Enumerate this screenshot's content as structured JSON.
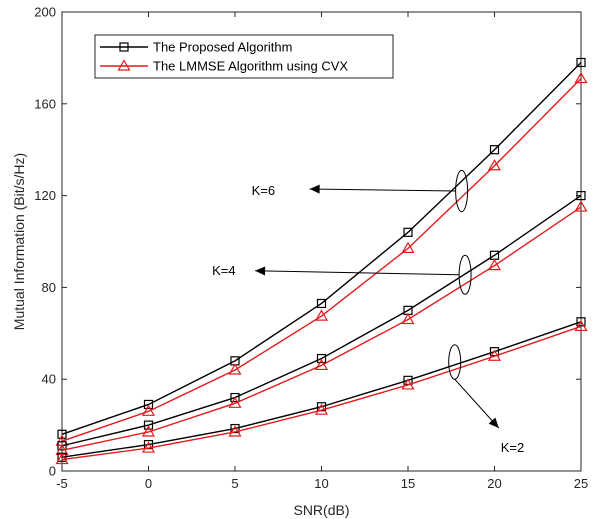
{
  "chart_data": {
    "type": "line",
    "xlabel": "SNR(dB)",
    "ylabel": "Mutual Information (Bit/s/Hz)",
    "xlim": [
      -5,
      25
    ],
    "ylim": [
      0,
      200
    ],
    "x_ticks": [
      -5,
      0,
      5,
      10,
      15,
      20,
      25
    ],
    "y_ticks": [
      0,
      40,
      80,
      120,
      160,
      200
    ],
    "grid": false,
    "legend_position": "top-left",
    "x": [
      -5,
      0,
      5,
      10,
      15,
      20,
      25
    ],
    "series": [
      {
        "name": "The Proposed Algorithm",
        "group": "K=6",
        "marker": "square",
        "color": "#000000",
        "values": [
          16,
          29,
          48,
          73,
          104,
          140,
          178
        ]
      },
      {
        "name": "The LMMSE Algorithm using CVX",
        "group": "K=6",
        "marker": "triangle",
        "color": "#e41a1c",
        "values": [
          13,
          26,
          44,
          67.5,
          97,
          133,
          171
        ]
      },
      {
        "name": "The Proposed Algorithm",
        "group": "K=4",
        "marker": "square",
        "color": "#000000",
        "values": [
          11,
          20,
          32,
          49,
          70,
          94,
          120
        ]
      },
      {
        "name": "The LMMSE Algorithm using CVX",
        "group": "K=4",
        "marker": "triangle",
        "color": "#e41a1c",
        "values": [
          9,
          17,
          29.5,
          46,
          66,
          89.5,
          115
        ]
      },
      {
        "name": "The Proposed Algorithm",
        "group": "K=2",
        "marker": "square",
        "color": "#000000",
        "values": [
          6,
          11.5,
          18.5,
          28,
          39.5,
          52,
          65
        ]
      },
      {
        "name": "The LMMSE Algorithm using CVX",
        "group": "K=2",
        "marker": "triangle",
        "color": "#e41a1c",
        "values": [
          5,
          10,
          17,
          26.5,
          37.5,
          50,
          63
        ]
      }
    ],
    "legend": [
      {
        "label": "The Proposed Algorithm",
        "marker": "square",
        "color": "#000000"
      },
      {
        "label": "The LMMSE Algorithm using CVX",
        "marker": "triangle",
        "color": "#e41a1c"
      }
    ],
    "annotations": [
      {
        "text": "K=6",
        "ellipse_center": [
          18.1,
          122
        ],
        "ellipse_half_height": 9
      },
      {
        "text": "K=4",
        "ellipse_center": [
          18.3,
          85.5
        ],
        "ellipse_half_height": 8.5
      },
      {
        "text": "K=2",
        "ellipse_center": [
          17.7,
          47.5
        ],
        "ellipse_half_height": 7.5
      }
    ]
  }
}
